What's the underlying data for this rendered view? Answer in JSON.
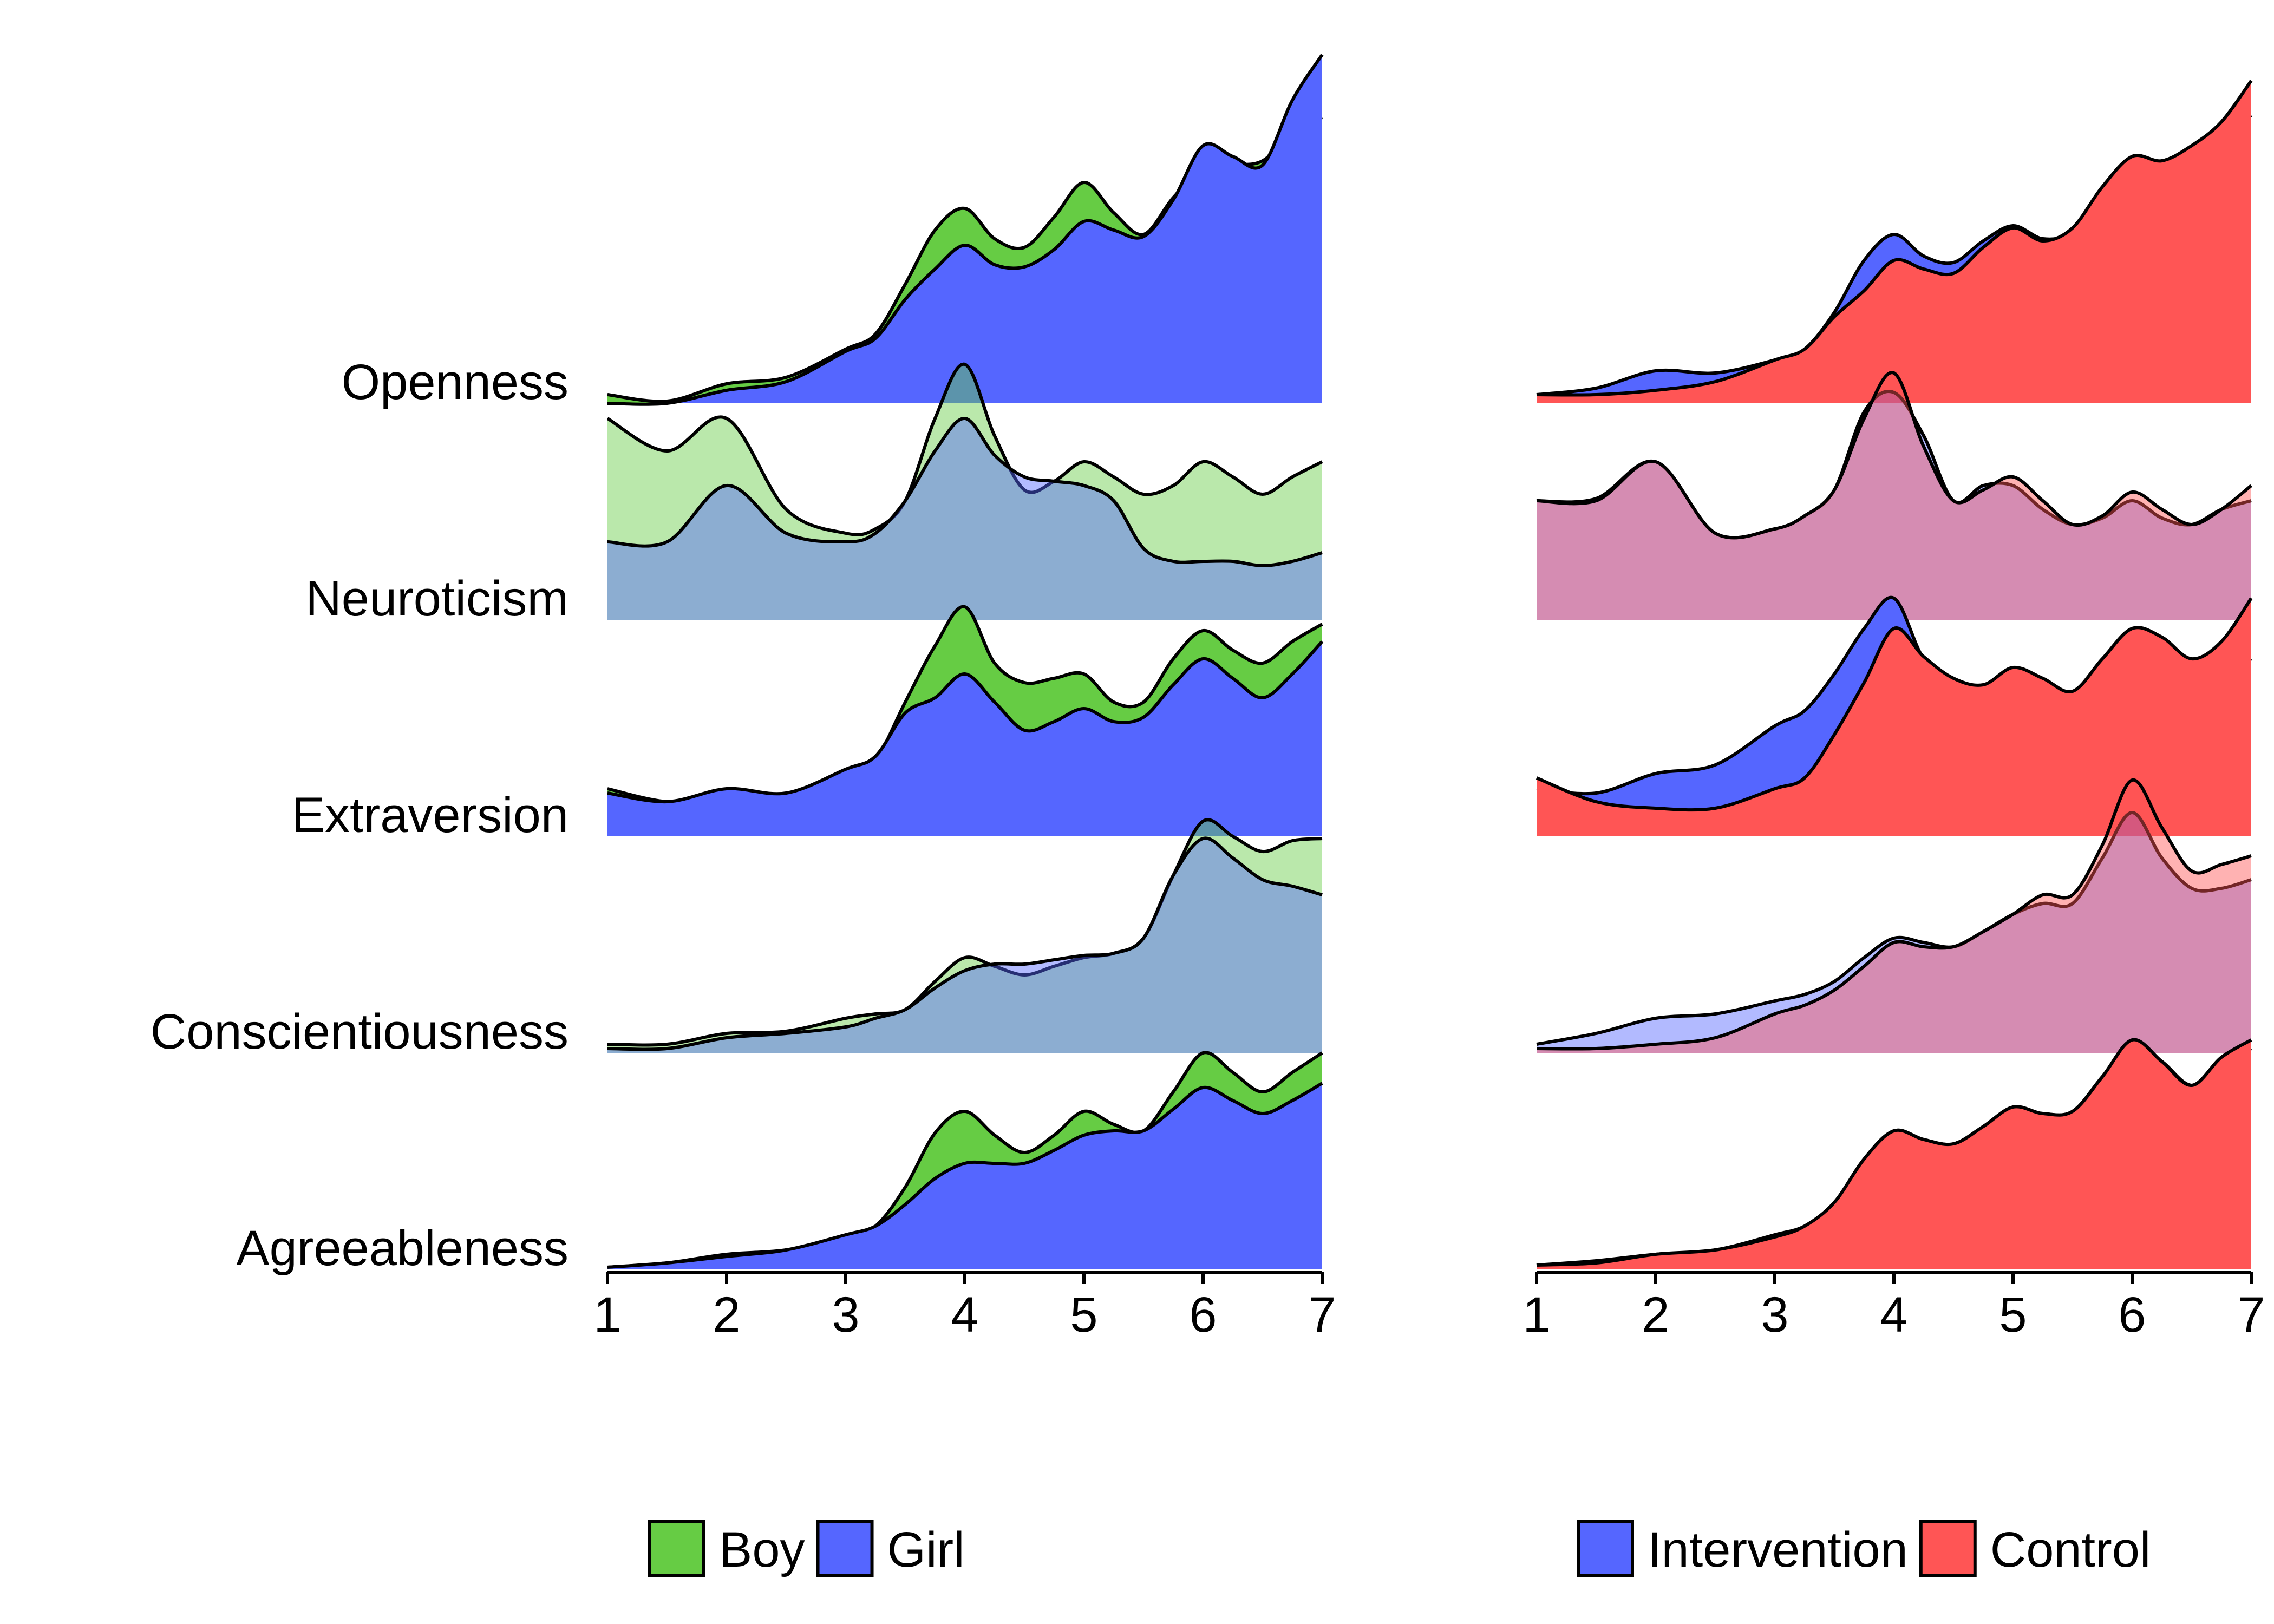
{
  "chart_data": [
    {
      "type": "ridgeline",
      "panel": "left",
      "title": "",
      "xlabel": "",
      "ylabel": "",
      "xlim": [
        1,
        7
      ],
      "x": [
        1,
        1.5,
        2,
        2.5,
        3,
        3.25,
        3.5,
        3.75,
        4,
        4.25,
        4.5,
        4.75,
        5,
        5.25,
        5.5,
        5.75,
        6,
        6.25,
        6.5,
        6.75,
        7
      ],
      "xticks": [
        "1",
        "2",
        "3",
        "4",
        "5",
        "6",
        "7"
      ],
      "rows": [
        {
          "label": "Openness",
          "alpha": 1.0,
          "series": [
            {
              "name": "Boy",
              "color": "#66cc44",
              "density": [
                0.04,
                0.01,
                0.09,
                0.12,
                0.25,
                0.32,
                0.55,
                0.8,
                0.9,
                0.76,
                0.72,
                0.86,
                1.02,
                0.88,
                0.78,
                0.95,
                1.08,
                1.1,
                1.12,
                1.25,
                1.32
              ]
            },
            {
              "name": "Girl",
              "color": "#5566ff",
              "density": [
                0.0,
                0.0,
                0.06,
                0.1,
                0.24,
                0.3,
                0.48,
                0.62,
                0.73,
                0.64,
                0.63,
                0.71,
                0.84,
                0.8,
                0.77,
                0.94,
                1.19,
                1.14,
                1.1,
                1.4,
                1.61
              ]
            }
          ]
        },
        {
          "label": "Neuroticism",
          "alpha": 0.45,
          "series": [
            {
              "name": "Boy",
              "color": "#66cc44",
              "density": [
                0.93,
                0.78,
                0.93,
                0.51,
                0.4,
                0.42,
                0.55,
                0.93,
                1.18,
                0.85,
                0.6,
                0.64,
                0.73,
                0.66,
                0.58,
                0.62,
                0.73,
                0.66,
                0.58,
                0.66,
                0.73
              ]
            },
            {
              "name": "Girl",
              "color": "#5566ff",
              "density": [
                0.36,
                0.36,
                0.62,
                0.4,
                0.36,
                0.4,
                0.55,
                0.78,
                0.93,
                0.76,
                0.66,
                0.64,
                0.62,
                0.55,
                0.33,
                0.27,
                0.27,
                0.27,
                0.25,
                0.27,
                0.31
              ]
            }
          ]
        },
        {
          "label": "Extraversion",
          "alpha": 1.0,
          "series": [
            {
              "name": "Boy",
              "color": "#66cc44",
              "density": [
                0.22,
                0.16,
                0.18,
                0.18,
                0.25,
                0.35,
                0.62,
                0.88,
                1.06,
                0.8,
                0.71,
                0.73,
                0.75,
                0.62,
                0.62,
                0.82,
                0.95,
                0.86,
                0.8,
                0.9,
                0.98
              ]
            },
            {
              "name": "Girl",
              "color": "#5566ff",
              "density": [
                0.2,
                0.16,
                0.22,
                0.2,
                0.31,
                0.37,
                0.57,
                0.64,
                0.75,
                0.62,
                0.49,
                0.53,
                0.59,
                0.53,
                0.55,
                0.7,
                0.82,
                0.73,
                0.64,
                0.75,
                0.9
              ]
            }
          ]
        },
        {
          "label": "Conscientiousness",
          "alpha": 0.45,
          "series": [
            {
              "name": "Boy",
              "color": "#66cc44",
              "density": [
                0.04,
                0.04,
                0.09,
                0.1,
                0.16,
                0.18,
                0.2,
                0.33,
                0.44,
                0.4,
                0.36,
                0.4,
                0.44,
                0.46,
                0.53,
                0.82,
                1.07,
                1.0,
                0.93,
                0.98,
                0.99
              ]
            },
            {
              "name": "Girl",
              "color": "#5566ff",
              "density": [
                0.02,
                0.02,
                0.07,
                0.09,
                0.12,
                0.16,
                0.2,
                0.3,
                0.38,
                0.41,
                0.41,
                0.43,
                0.45,
                0.46,
                0.53,
                0.82,
                0.99,
                0.9,
                0.8,
                0.77,
                0.73
              ]
            }
          ]
        },
        {
          "label": "Agreeableness",
          "alpha": 1.0,
          "series": [
            {
              "name": "Boy",
              "color": "#66cc44",
              "density": [
                0.01,
                0.03,
                0.07,
                0.09,
                0.15,
                0.2,
                0.38,
                0.63,
                0.73,
                0.62,
                0.54,
                0.62,
                0.73,
                0.67,
                0.64,
                0.82,
                1.0,
                0.91,
                0.82,
                0.91,
                1.0
              ]
            },
            {
              "name": "Girl",
              "color": "#5566ff",
              "density": [
                0.01,
                0.03,
                0.06,
                0.09,
                0.16,
                0.2,
                0.3,
                0.42,
                0.49,
                0.49,
                0.49,
                0.55,
                0.62,
                0.64,
                0.64,
                0.74,
                0.84,
                0.78,
                0.72,
                0.78,
                0.86
              ]
            }
          ]
        }
      ],
      "legend": {
        "placement": "bottom",
        "entries": [
          {
            "label": "Boy",
            "color": "#66cc44"
          },
          {
            "label": "Girl",
            "color": "#5566ff"
          }
        ]
      }
    },
    {
      "type": "ridgeline",
      "panel": "right",
      "title": "",
      "xlabel": "",
      "ylabel": "",
      "xlim": [
        1,
        7
      ],
      "x": [
        1,
        1.5,
        2,
        2.5,
        3,
        3.25,
        3.5,
        3.75,
        4,
        4.25,
        4.5,
        4.75,
        5,
        5.25,
        5.5,
        5.75,
        6,
        6.25,
        6.5,
        6.75,
        7
      ],
      "xticks": [
        "1",
        "2",
        "3",
        "4",
        "5",
        "6",
        "7"
      ],
      "rows": [
        {
          "label": "Openness",
          "alpha": 1.0,
          "series": [
            {
              "name": "Intervention",
              "color": "#5566ff",
              "density": [
                0.04,
                0.07,
                0.15,
                0.14,
                0.2,
                0.25,
                0.42,
                0.66,
                0.78,
                0.68,
                0.65,
                0.75,
                0.82,
                0.76,
                0.79,
                0.95,
                1.1,
                1.05,
                1.1,
                1.24,
                1.33
              ]
            },
            {
              "name": "Control",
              "color": "#ff5555",
              "density": [
                0.04,
                0.04,
                0.06,
                0.1,
                0.2,
                0.25,
                0.4,
                0.52,
                0.66,
                0.62,
                0.6,
                0.72,
                0.81,
                0.75,
                0.81,
                1.0,
                1.14,
                1.12,
                1.19,
                1.3,
                1.49
              ]
            }
          ]
        },
        {
          "label": "Neuroticism",
          "alpha": 0.45,
          "series": [
            {
              "name": "Intervention",
              "color": "#5566ff",
              "density": [
                0.55,
                0.56,
                0.73,
                0.4,
                0.42,
                0.48,
                0.6,
                0.96,
                1.05,
                0.85,
                0.55,
                0.62,
                0.62,
                0.51,
                0.44,
                0.47,
                0.55,
                0.47,
                0.44,
                0.51,
                0.55
              ]
            },
            {
              "name": "Control",
              "color": "#ff5555",
              "density": [
                0.55,
                0.55,
                0.73,
                0.4,
                0.42,
                0.48,
                0.6,
                0.93,
                1.14,
                0.8,
                0.55,
                0.6,
                0.66,
                0.55,
                0.44,
                0.48,
                0.59,
                0.51,
                0.44,
                0.51,
                0.62
              ]
            }
          ]
        },
        {
          "label": "Extraversion",
          "alpha": 1.0,
          "series": [
            {
              "name": "Intervention",
              "color": "#5566ff",
              "density": [
                0.22,
                0.2,
                0.29,
                0.33,
                0.51,
                0.58,
                0.75,
                0.96,
                1.1,
                0.82,
                0.73,
                0.68,
                0.73,
                0.65,
                0.59,
                0.68,
                0.8,
                0.73,
                0.67,
                0.74,
                0.82
              ]
            },
            {
              "name": "Control",
              "color": "#ff5555",
              "density": [
                0.27,
                0.16,
                0.13,
                0.13,
                0.22,
                0.27,
                0.47,
                0.71,
                0.96,
                0.83,
                0.73,
                0.7,
                0.78,
                0.73,
                0.67,
                0.82,
                0.96,
                0.92,
                0.82,
                0.9,
                1.1
              ]
            }
          ]
        },
        {
          "label": "Conscientiousness",
          "alpha": 0.45,
          "series": [
            {
              "name": "Intervention",
              "color": "#5566ff",
              "density": [
                0.04,
                0.09,
                0.16,
                0.18,
                0.24,
                0.27,
                0.33,
                0.44,
                0.53,
                0.51,
                0.49,
                0.56,
                0.64,
                0.69,
                0.69,
                0.9,
                1.11,
                0.9,
                0.76,
                0.76,
                0.8
              ]
            },
            {
              "name": "Control",
              "color": "#ff5555",
              "density": [
                0.02,
                0.02,
                0.04,
                0.07,
                0.18,
                0.22,
                0.29,
                0.4,
                0.51,
                0.49,
                0.49,
                0.56,
                0.64,
                0.73,
                0.73,
                0.96,
                1.26,
                1.04,
                0.84,
                0.87,
                0.91
              ]
            }
          ]
        },
        {
          "label": "Agreeableness",
          "alpha": 1.0,
          "series": [
            {
              "name": "Intervention",
              "color": "#5566ff",
              "density": [
                0.02,
                0.04,
                0.07,
                0.09,
                0.16,
                0.2,
                0.3,
                0.51,
                0.64,
                0.6,
                0.58,
                0.66,
                0.75,
                0.72,
                0.73,
                0.89,
                1.04,
                0.96,
                0.85,
                0.95,
                1.02
              ]
            },
            {
              "name": "Control",
              "color": "#ff5555",
              "density": [
                0.02,
                0.03,
                0.07,
                0.09,
                0.15,
                0.2,
                0.31,
                0.51,
                0.64,
                0.6,
                0.58,
                0.66,
                0.75,
                0.72,
                0.73,
                0.89,
                1.06,
                0.96,
                0.85,
                0.98,
                1.06
              ]
            }
          ]
        }
      ],
      "legend": {
        "placement": "bottom",
        "entries": [
          {
            "label": "Intervention",
            "color": "#5566ff"
          },
          {
            "label": "Control",
            "color": "#ff5555"
          }
        ]
      }
    }
  ]
}
